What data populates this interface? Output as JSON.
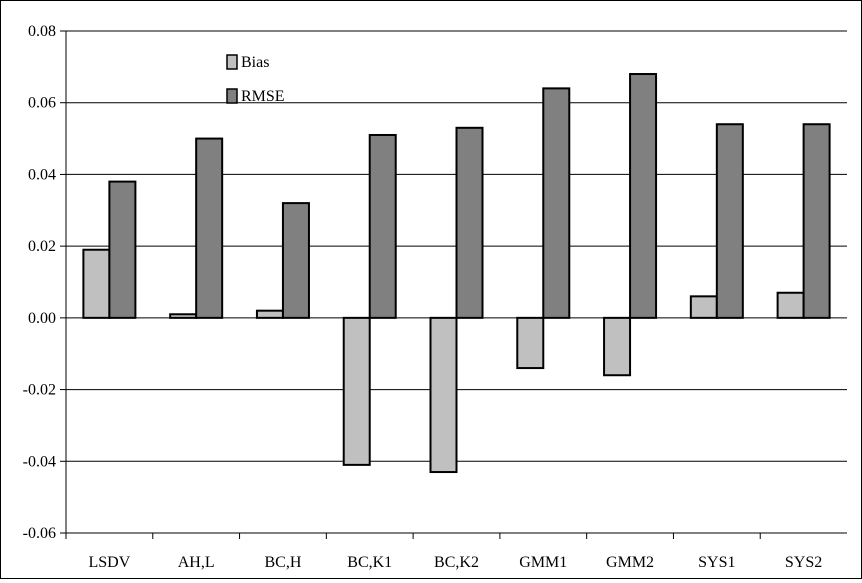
{
  "chart_data": {
    "type": "bar",
    "title": "",
    "xlabel": "",
    "ylabel": "",
    "categories": [
      "LSDV",
      "AH,L",
      "BC,H",
      "BC,K1",
      "BC,K2",
      "GMM1",
      "GMM2",
      "SYS1",
      "SYS2"
    ],
    "series": [
      {
        "name": "Bias",
        "color": "#c0c0c0",
        "values": [
          0.019,
          0.001,
          0.002,
          -0.041,
          -0.043,
          -0.014,
          -0.016,
          0.006,
          0.007
        ]
      },
      {
        "name": "RMSE",
        "color": "#808080",
        "values": [
          0.038,
          0.05,
          0.032,
          0.051,
          0.053,
          0.064,
          0.068,
          0.054,
          0.054
        ]
      }
    ],
    "ylim": [
      -0.06,
      0.08
    ],
    "yticks": [
      "0.08",
      "0.06",
      "0.04",
      "0.02",
      "0.00",
      "-0.02",
      "-0.04",
      "-0.06"
    ],
    "grid": true,
    "legend_position": "top-left inside plot"
  }
}
